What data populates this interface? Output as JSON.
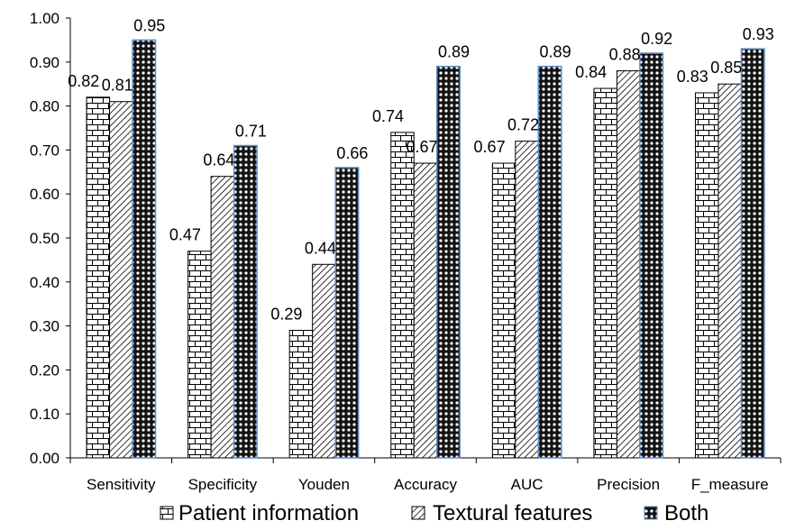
{
  "chart_data": {
    "type": "bar",
    "title": "",
    "xlabel": "",
    "ylabel": "",
    "ylim": [
      0,
      1.0
    ],
    "y_ticks": [
      "0.00",
      "0.10",
      "0.20",
      "0.30",
      "0.40",
      "0.50",
      "0.60",
      "0.70",
      "0.80",
      "0.90",
      "1.00"
    ],
    "categories": [
      "Sensitivity",
      "Specificity",
      "Youden",
      "Accuracy",
      "AUC",
      "Precision",
      "F_measure"
    ],
    "series": [
      {
        "name": "Patient information",
        "pattern": "brick",
        "values": [
          0.82,
          0.47,
          0.29,
          0.74,
          0.67,
          0.84,
          0.83
        ],
        "labels": [
          "0.82",
          "0.47",
          "0.29",
          "0.74",
          "0.67",
          "0.84",
          "0.83"
        ]
      },
      {
        "name": "Textural features",
        "pattern": "diagonal-hatch",
        "values": [
          0.81,
          0.64,
          0.44,
          0.67,
          0.72,
          0.88,
          0.85
        ],
        "labels": [
          "0.81",
          "0.64",
          "0.44",
          "0.67",
          "0.72",
          "0.88",
          "0.85"
        ]
      },
      {
        "name": "Both",
        "pattern": "dotted-dark",
        "values": [
          0.95,
          0.71,
          0.66,
          0.89,
          0.89,
          0.92,
          0.93
        ],
        "labels": [
          "0.95",
          "0.71",
          "0.66",
          "0.89",
          "0.89",
          "0.92",
          "0.93"
        ]
      }
    ],
    "grid": false,
    "legend_position": "bottom",
    "colors": {
      "bar_stroke": "#000000",
      "both_outline": "#5b8fc7",
      "axis": "#000000"
    }
  }
}
